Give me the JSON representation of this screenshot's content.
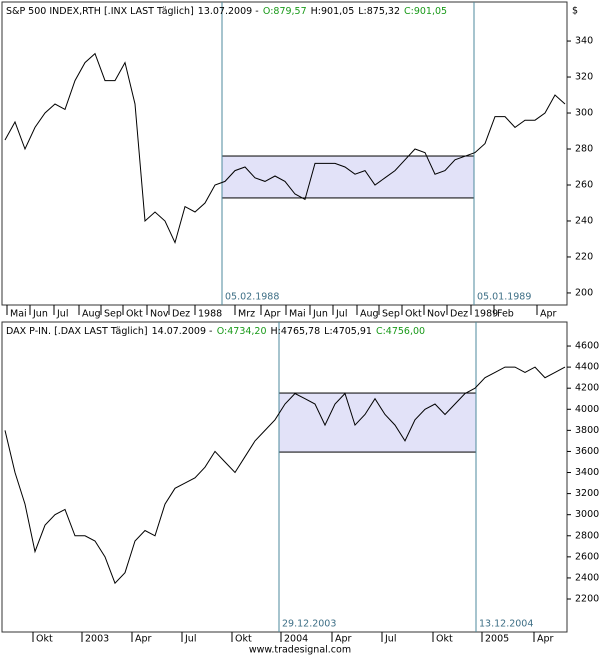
{
  "footer": "www.tradesignal.com",
  "chart_data": [
    {
      "type": "line",
      "title": "S&P 500 INDEX,RTH [.INX LAST Täglich]",
      "date": "13.07.2009 -",
      "open": "O:879,57",
      "high": "H:901,05",
      "low": "L:875,32",
      "close": "C:901,05",
      "unit": "$",
      "color": "#000000",
      "values": [
        285,
        295,
        280,
        292,
        300,
        305,
        302,
        318,
        328,
        333,
        318,
        318,
        328,
        305,
        240,
        245,
        240,
        228,
        248,
        245,
        250,
        260,
        262,
        268,
        270,
        264,
        262,
        265,
        262,
        255,
        252,
        272,
        272,
        272,
        270,
        266,
        268,
        260,
        264,
        268,
        274,
        280,
        278,
        266,
        268,
        274,
        276,
        278,
        283,
        298,
        298,
        292,
        296,
        296,
        300,
        310,
        305
      ],
      "xlim": [
        -0.3,
        56.2
      ],
      "ylim": [
        193.3,
        361.7
      ],
      "yticks": [
        200,
        220,
        240,
        260,
        280,
        300,
        320,
        340
      ],
      "xticks": [
        {
          "value": 0.2,
          "label": "Mai"
        },
        {
          "value": 2.5,
          "label": "Jun"
        },
        {
          "value": 4.9,
          "label": "Jul"
        },
        {
          "value": 7.4,
          "label": "Aug"
        },
        {
          "value": 9.6,
          "label": "Sep"
        },
        {
          "value": 11.8,
          "label": "Okt"
        },
        {
          "value": 14.2,
          "label": "Nov"
        },
        {
          "value": 16.4,
          "label": "Dez"
        },
        {
          "value": 19,
          "label": "1988"
        },
        {
          "value": 23,
          "label": "Mrz"
        },
        {
          "value": 25.6,
          "label": "Apr"
        },
        {
          "value": 28.1,
          "label": "Mai"
        },
        {
          "value": 30.5,
          "label": "Jun"
        },
        {
          "value": 32.8,
          "label": "Jul"
        },
        {
          "value": 35.2,
          "label": "Aug"
        },
        {
          "value": 37.4,
          "label": "Sep"
        },
        {
          "value": 39.7,
          "label": "Okt"
        },
        {
          "value": 41.9,
          "label": "Nov"
        },
        {
          "value": 44.2,
          "label": "Dez"
        },
        {
          "value": 46.6,
          "label": "1989"
        },
        {
          "value": 48.9,
          "label": "Feb"
        },
        {
          "value": 53.2,
          "label": "Apr"
        }
      ],
      "highlight": {
        "x": [
          21.7,
          46.9
        ],
        "y": [
          252.8,
          276.1
        ],
        "labels": [
          "05.02.1988",
          "05.01.1989"
        ]
      }
    },
    {
      "type": "line",
      "title": "DAX P-IN. [.DAX LAST Täglich]",
      "date": "14.07.2009 -",
      "open": "O:4734,20",
      "high": "H:4765,78",
      "low": "L:4705,91",
      "close": "C:4756,00",
      "color": "#000000",
      "values": [
        3800,
        3400,
        3100,
        2650,
        2900,
        3000,
        3050,
        2800,
        2800,
        2750,
        2600,
        2350,
        2450,
        2750,
        2850,
        2800,
        3100,
        3250,
        3300,
        3350,
        3450,
        3600,
        3500,
        3400,
        3550,
        3700,
        3800,
        3900,
        4050,
        4150,
        4100,
        4050,
        3850,
        4050,
        4150,
        3850,
        3950,
        4100,
        3950,
        3850,
        3700,
        3900,
        4000,
        4050,
        3950,
        4050,
        4150,
        4200,
        4300,
        4350,
        4400,
        4400,
        4350,
        4400,
        4300,
        4350,
        4400
      ],
      "xlim": [
        -0.3,
        56.2
      ],
      "ylim": [
        1887,
        4828
      ],
      "yticks": [
        2200,
        2400,
        2600,
        2800,
        3000,
        3200,
        3400,
        3600,
        3800,
        4000,
        4200,
        4400,
        4600
      ],
      "xticks": [
        {
          "value": 2.8,
          "label": "Okt"
        },
        {
          "value": 7.7,
          "label": "2003"
        },
        {
          "value": 12.7,
          "label": "Apr"
        },
        {
          "value": 17.7,
          "label": "Jul"
        },
        {
          "value": 22.7,
          "label": "Okt"
        },
        {
          "value": 27.6,
          "label": "2004"
        },
        {
          "value": 32.7,
          "label": "Apr"
        },
        {
          "value": 37.7,
          "label": "Jul"
        },
        {
          "value": 42.8,
          "label": "Okt"
        },
        {
          "value": 47.7,
          "label": "2005"
        },
        {
          "value": 52.9,
          "label": "Apr"
        }
      ],
      "highlight": {
        "x": [
          27.4,
          47.1
        ],
        "y": [
          3594,
          4154
        ],
        "labels": [
          "29.12.2003",
          "13.12.2004"
        ]
      }
    }
  ]
}
